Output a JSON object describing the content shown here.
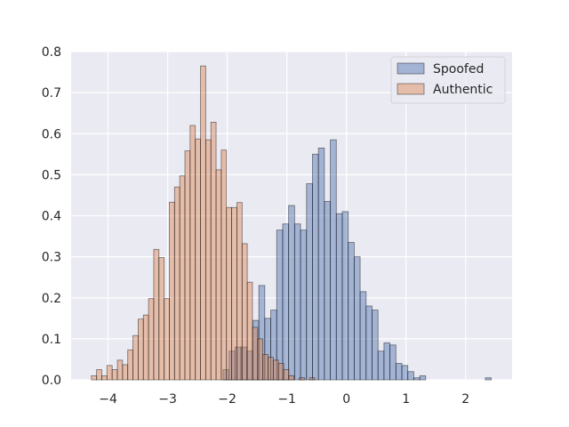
{
  "chart_data": {
    "type": "histogram",
    "title": "",
    "xlabel": "",
    "ylabel": "",
    "xlim": [
      -4.62,
      2.78
    ],
    "ylim": [
      0,
      0.8
    ],
    "x_ticks": [
      "−4",
      "−3",
      "−2",
      "−1",
      "0",
      "1",
      "2"
    ],
    "x_tick_values": [
      -4,
      -3,
      -2,
      -1,
      0,
      1,
      2
    ],
    "y_ticks": [
      "0.0",
      "0.1",
      "0.2",
      "0.3",
      "0.4",
      "0.5",
      "0.6",
      "0.7",
      "0.8"
    ],
    "y_tick_values": [
      0,
      0.1,
      0.2,
      0.3,
      0.4,
      0.5,
      0.6,
      0.7,
      0.8
    ],
    "grid": true,
    "legend_position": "top-right",
    "series": [
      {
        "name": "Spoofed",
        "color": "#4c72b0",
        "bin_width": 0.1,
        "bin_starts": [
          -2.07,
          -1.97,
          -1.87,
          -1.77,
          -1.67,
          -1.57,
          -1.47,
          -1.37,
          -1.27,
          -1.17,
          -1.07,
          -0.97,
          -0.87,
          -0.77,
          -0.67,
          -0.57,
          -0.47,
          -0.37,
          -0.27,
          -0.17,
          -0.07,
          0.03,
          0.13,
          0.23,
          0.33,
          0.43,
          0.53,
          0.63,
          0.73,
          0.83,
          0.93,
          1.03,
          1.13,
          1.23,
          1.33,
          1.43,
          1.53,
          1.63,
          1.73,
          1.83,
          1.93,
          2.03,
          2.13,
          2.23,
          2.33
        ],
        "values": [
          0.025,
          0.07,
          0.08,
          0.08,
          0.07,
          0.145,
          0.23,
          0.15,
          0.17,
          0.365,
          0.38,
          0.425,
          0.38,
          0.365,
          0.478,
          0.55,
          0.565,
          0.435,
          0.585,
          0.405,
          0.41,
          0.335,
          0.3,
          0.215,
          0.18,
          0.17,
          0.07,
          0.09,
          0.085,
          0.04,
          0.035,
          0.02,
          0.005,
          0.01,
          0.0,
          0.0,
          0.0,
          0.0,
          0.0,
          0.0,
          0.0,
          0.0,
          0.0,
          0.0,
          0.005
        ]
      },
      {
        "name": "Authentic",
        "color": "#dd8452",
        "bin_width": 0.0872,
        "bin_starts": [
          -4.28,
          -4.1928,
          -4.1056,
          -4.0184,
          -3.9312,
          -3.844,
          -3.7568,
          -3.6696,
          -3.5824,
          -3.4952,
          -3.408,
          -3.3208,
          -3.2336,
          -3.1464,
          -3.0592,
          -2.972,
          -2.8848,
          -2.7976,
          -2.7104,
          -2.6232,
          -2.536,
          -2.4488,
          -2.3616,
          -2.2744,
          -2.1872,
          -2.1,
          -2.0128,
          -1.9256,
          -1.8384,
          -1.7512,
          -1.664,
          -1.5768,
          -1.4896,
          -1.4024,
          -1.3152,
          -1.228,
          -1.1408,
          -1.0536,
          -0.9664,
          -0.8792,
          -0.792,
          -0.7048,
          -0.6176,
          -0.5304,
          -0.4432,
          -0.356
        ],
        "values": [
          0.01,
          0.025,
          0.01,
          0.035,
          0.025,
          0.048,
          0.037,
          0.073,
          0.108,
          0.148,
          0.158,
          0.198,
          0.318,
          0.298,
          0.198,
          0.433,
          0.47,
          0.497,
          0.558,
          0.62,
          0.587,
          0.765,
          0.585,
          0.628,
          0.512,
          0.56,
          0.42,
          0.42,
          0.432,
          0.332,
          0.238,
          0.128,
          0.1,
          0.062,
          0.055,
          0.048,
          0.04,
          0.025,
          0.01,
          0.0,
          0.005,
          0.0,
          0.005,
          0.0,
          0.0,
          0.0
        ]
      }
    ]
  }
}
